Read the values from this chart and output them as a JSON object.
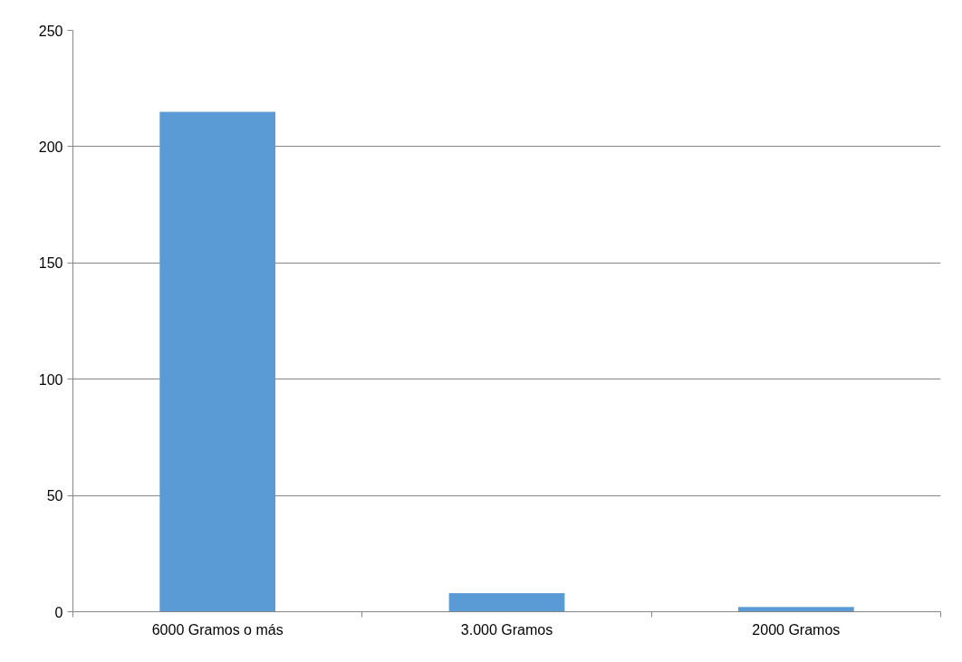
{
  "chart_data": {
    "type": "bar",
    "categories": [
      "6000 Gramos o más",
      "3.000 Gramos",
      "2000 Gramos"
    ],
    "values": [
      215,
      8,
      2
    ],
    "color": "#5b9bd5",
    "ylim": [
      0,
      250
    ],
    "yticks": [
      0,
      50,
      100,
      150,
      200,
      250
    ],
    "grid": "y"
  }
}
